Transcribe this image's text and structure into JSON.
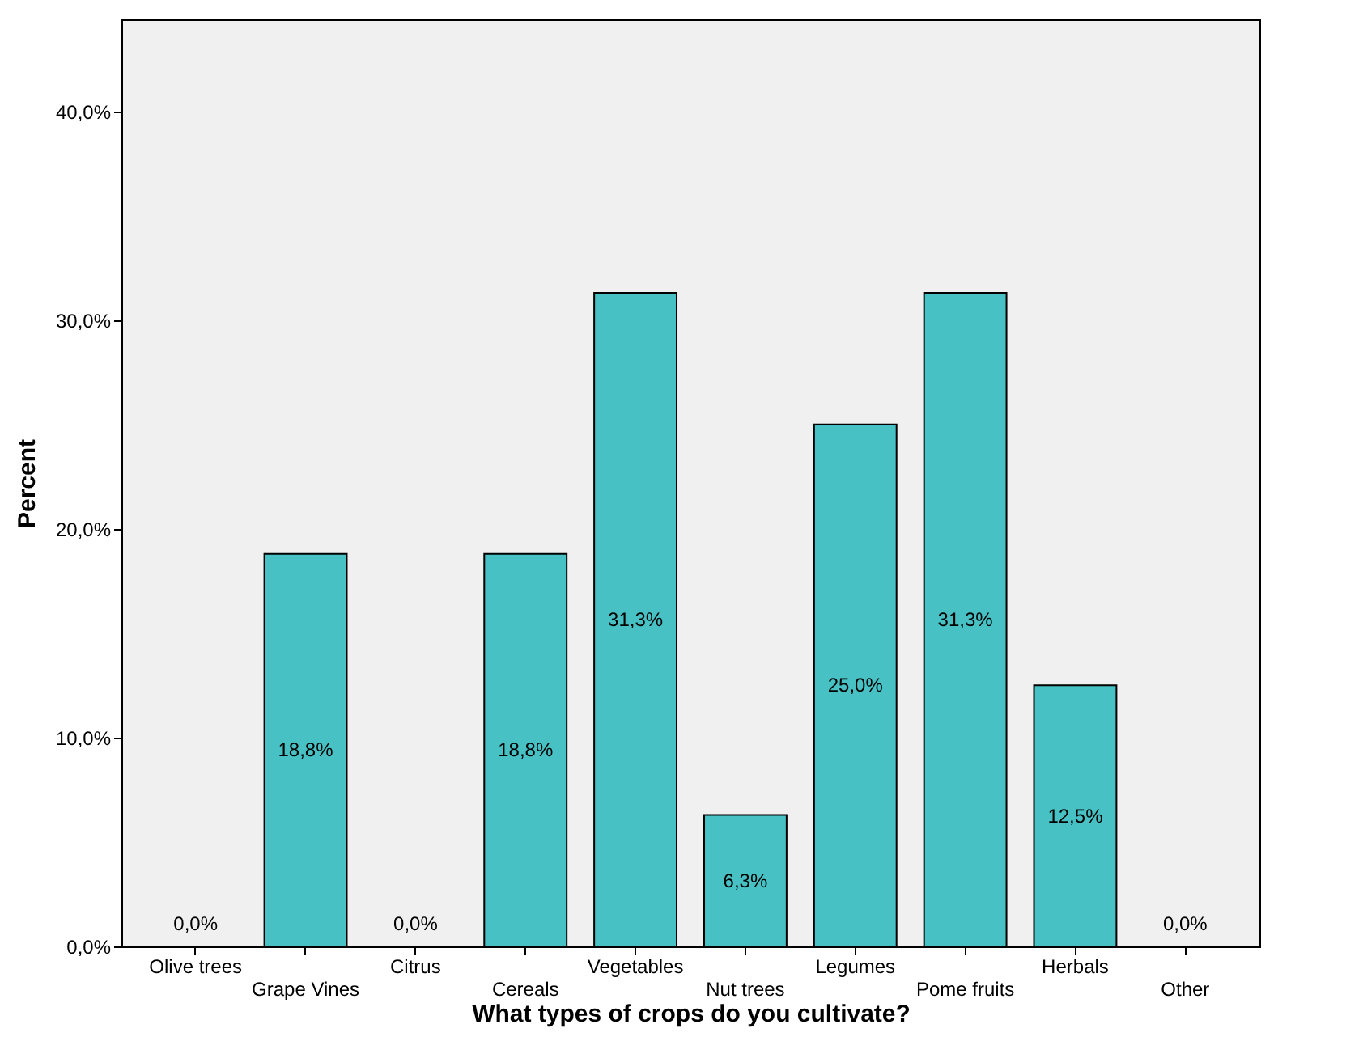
{
  "chart_data": {
    "type": "bar",
    "xlabel": "What types of crops do you cultivate?",
    "ylabel": "Percent",
    "categories": [
      "Olive trees",
      "Grape Vines",
      "Citrus",
      "Cereals",
      "Vegetables",
      "Nut trees",
      "Legumes",
      "Pome fruits",
      "Herbals",
      "Other"
    ],
    "values": [
      0,
      18.8,
      0,
      18.8,
      31.3,
      6.3,
      25.0,
      31.3,
      12.5,
      0
    ],
    "value_labels": [
      "0,0%",
      "18,8%",
      "0,0%",
      "18,8%",
      "31,3%",
      "6,3%",
      "25,0%",
      "31,3%",
      "12,5%",
      "0,0%"
    ],
    "color": "#48c1c4",
    "ylim": [
      0,
      44.4
    ],
    "yticks": [
      {
        "value": 0,
        "label": "0,0%"
      },
      {
        "value": 10,
        "label": "10,0%"
      },
      {
        "value": 20,
        "label": "20,0%"
      },
      {
        "value": 30,
        "label": "30,0%"
      },
      {
        "value": 40,
        "label": "40,0%"
      }
    ],
    "grid": false
  }
}
